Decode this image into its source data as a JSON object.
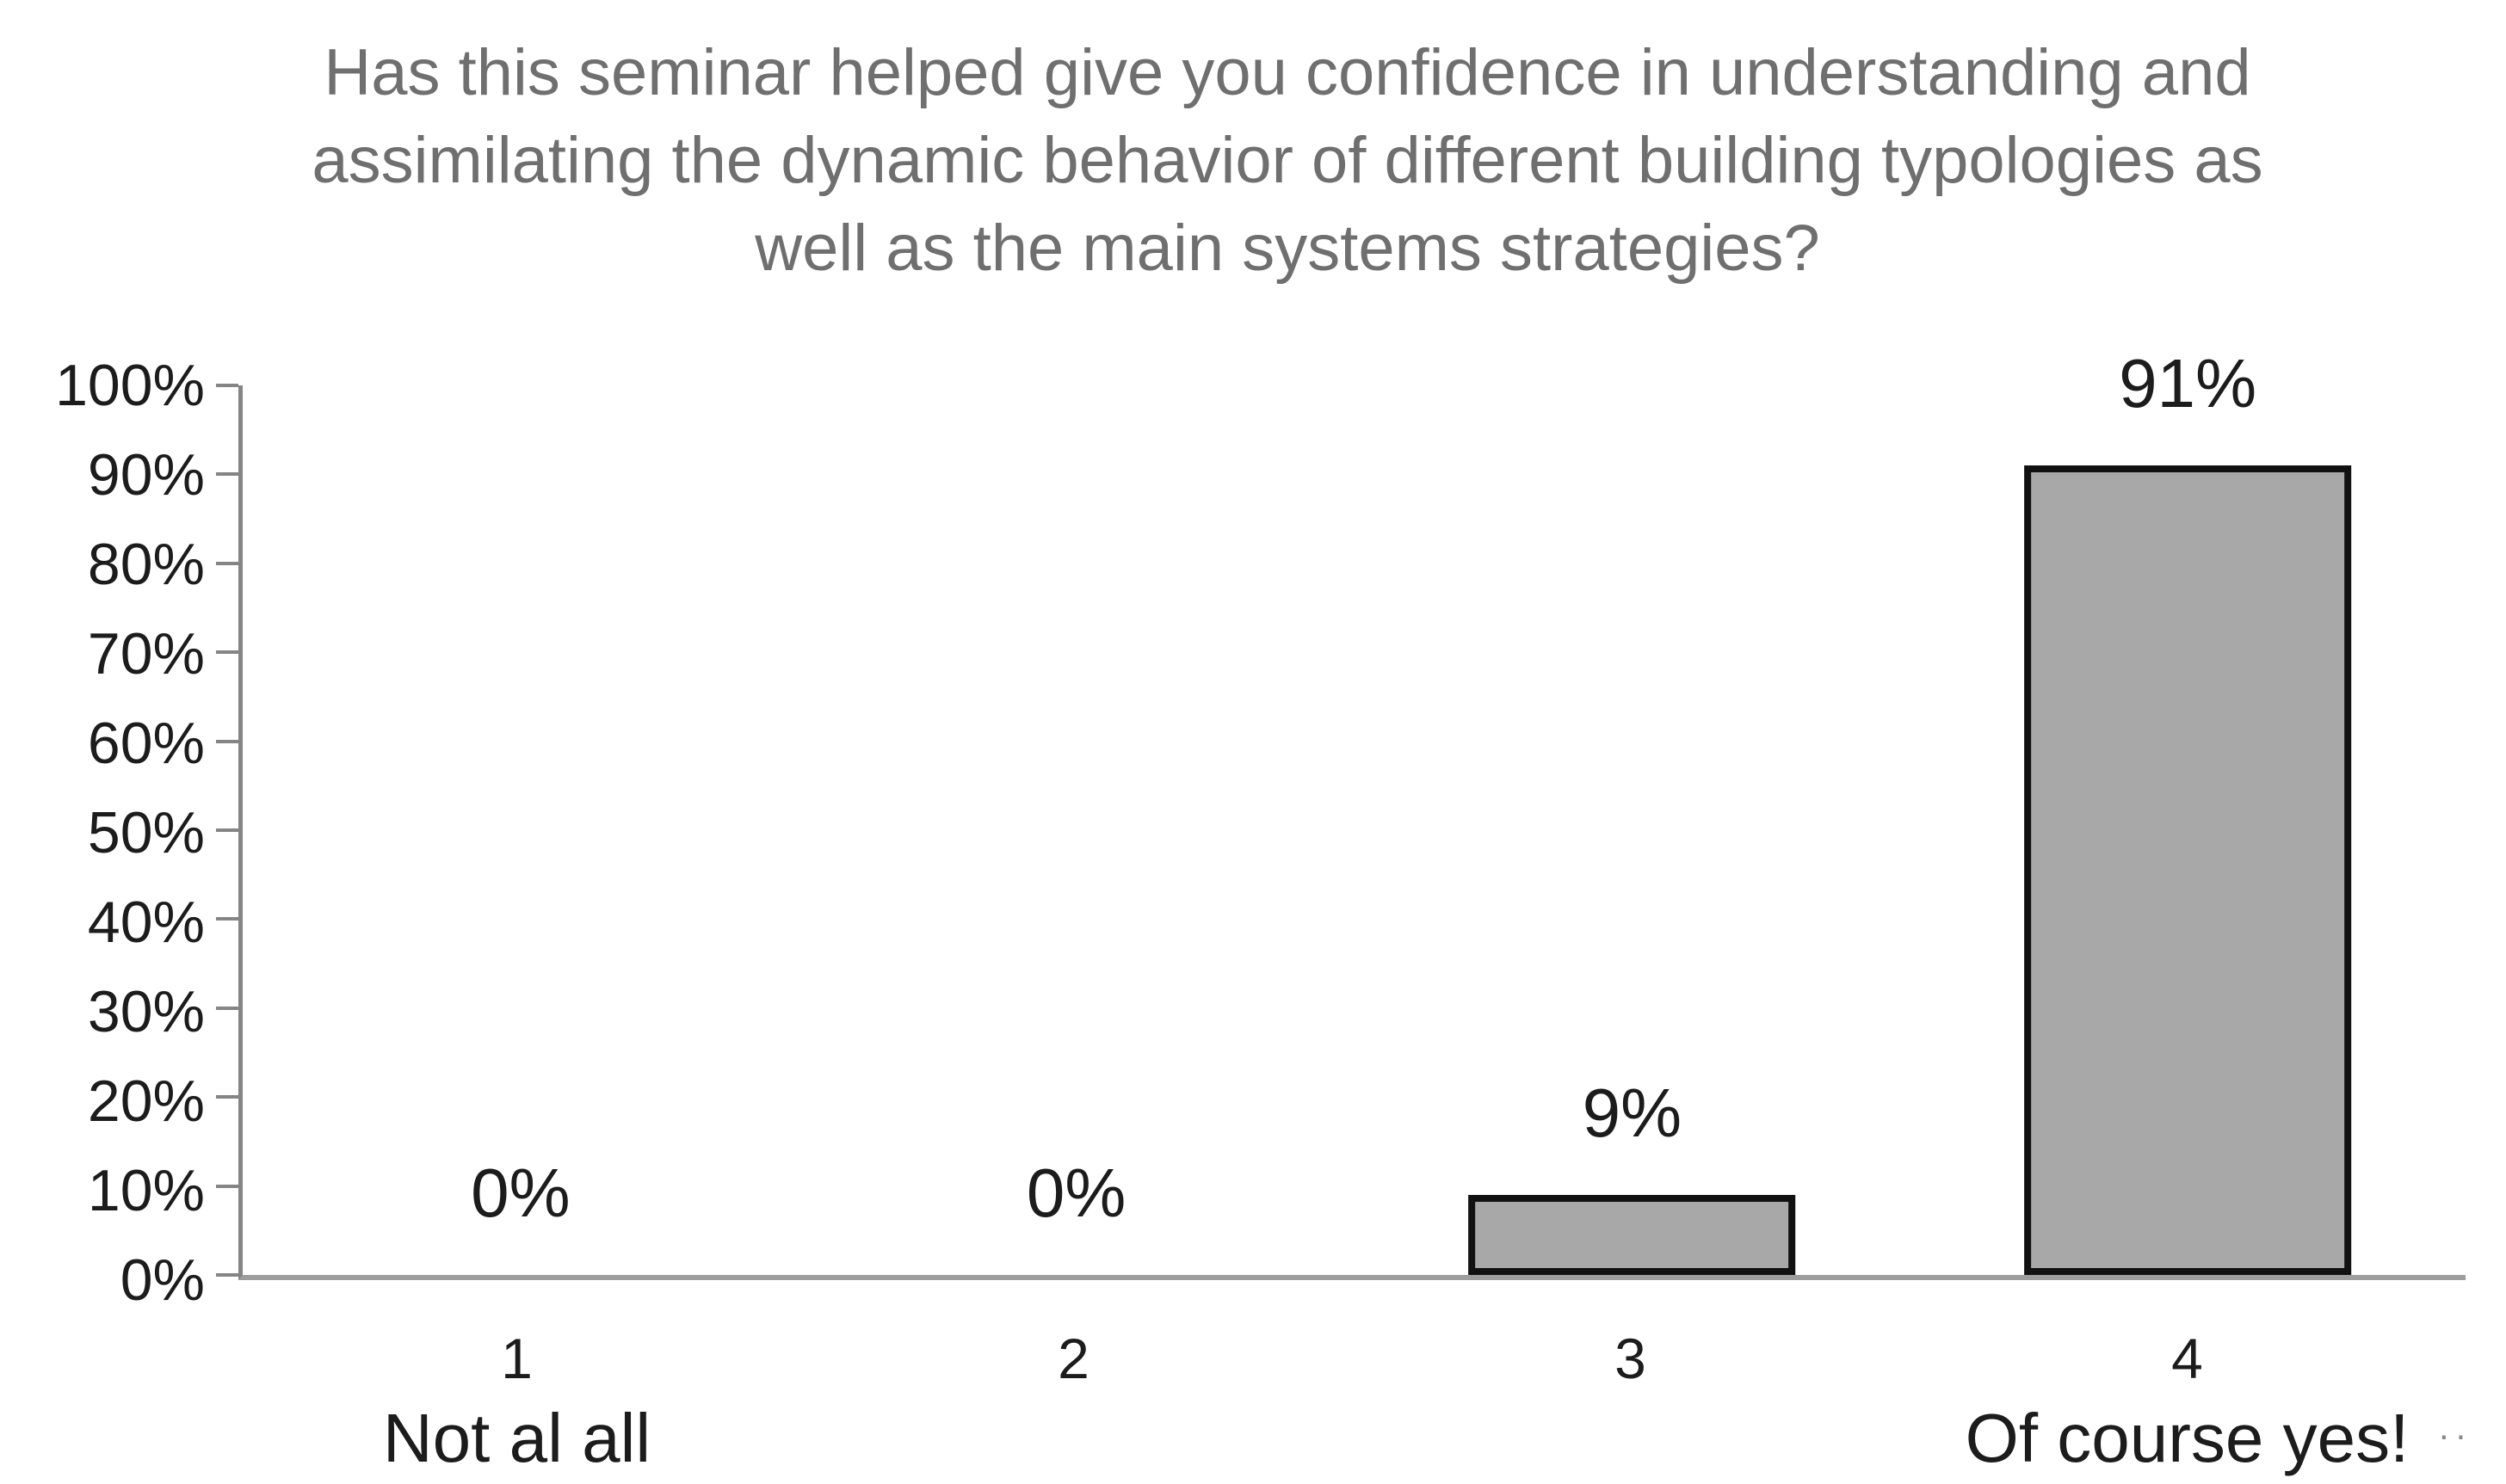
{
  "chart_data": {
    "type": "bar",
    "title": "Has this seminar helped give you confidence in understanding and assimilating the dynamic behavior of different building typologies as well as the main systems strategies?",
    "title_lines": [
      "Has this seminar helped give you confidence in understanding and",
      "assimilating the dynamic behavior of different building typologies as",
      "well as the main systems strategies?"
    ],
    "categories": [
      "1",
      "2",
      "3",
      "4"
    ],
    "category_sublabels": [
      "Not al all",
      "",
      "",
      "Of course yes!"
    ],
    "values": [
      0,
      0,
      9,
      91
    ],
    "data_labels": [
      "0%",
      "0%",
      "9%",
      "91%"
    ],
    "xlabel": "",
    "ylabel": "",
    "ylim": [
      0,
      100
    ],
    "ytick_interval": 10,
    "ytick_labels": [
      "0%",
      "10%",
      "20%",
      "30%",
      "40%",
      "50%",
      "60%",
      "70%",
      "80%",
      "90%",
      "100%"
    ],
    "grid": false,
    "legend": false,
    "bar_width_frac": 0.147,
    "colors": {
      "bar_fill": "#a8a8a8",
      "bar_border": "#111111",
      "axis_line": "#858585",
      "baseline": "#9d9d9d",
      "title_text": "#6f6f6f",
      "label_text": "#1c1c1c",
      "background": "#ffffff"
    }
  },
  "artifact_text": ".."
}
